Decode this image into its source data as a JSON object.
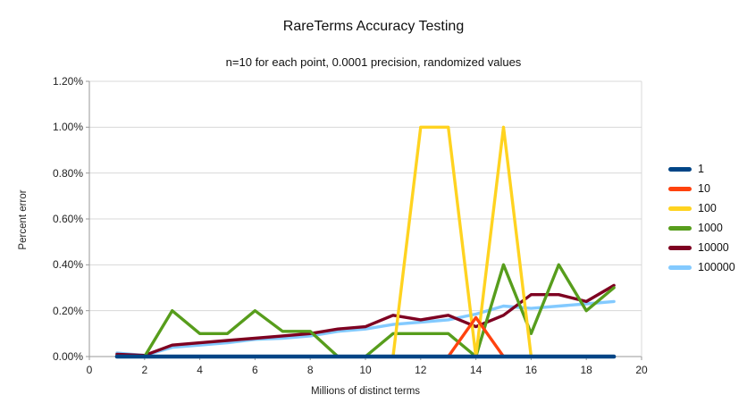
{
  "title": "RareTerms Accuracy Testing",
  "subtitle": "n=10 for each point, 0.0001 precision, randomized values",
  "chart_data": {
    "type": "line",
    "title": "RareTerms Accuracy Testing",
    "subtitle": "n=10 for each point, 0.0001 precision, randomized values",
    "xlabel": "Millions of distinct terms",
    "ylabel": "Percent error",
    "xlim": [
      0,
      20
    ],
    "ylim_percent": [
      0,
      1.2
    ],
    "grid": true,
    "legend_position": "right",
    "x": [
      1,
      2,
      3,
      4,
      5,
      6,
      7,
      8,
      9,
      10,
      11,
      12,
      13,
      14,
      15,
      16,
      17,
      18,
      19
    ],
    "series": [
      {
        "name": "1",
        "color": "#004586",
        "values": [
          0,
          0,
          0,
          0,
          0,
          0,
          0,
          0,
          0,
          0,
          0,
          0,
          0,
          0,
          0,
          0,
          0,
          0,
          0
        ]
      },
      {
        "name": "10",
        "color": "#FF420E",
        "values": [
          0,
          0,
          0,
          0,
          0,
          0,
          0,
          0,
          0,
          0,
          0,
          0,
          0,
          0.17,
          0,
          0,
          0,
          0,
          0
        ]
      },
      {
        "name": "100",
        "color": "#FFD320",
        "values": [
          0,
          0,
          0,
          0,
          0,
          0,
          0,
          0,
          0,
          0,
          0,
          1.0,
          1.0,
          0,
          1.0,
          0,
          0,
          0,
          0
        ]
      },
      {
        "name": "1000",
        "color": "#579D1C",
        "values": [
          0,
          0,
          0.2,
          0.1,
          0.1,
          0.2,
          0.11,
          0.11,
          0,
          0,
          0.1,
          0.1,
          0.1,
          0,
          0.4,
          0.1,
          0.4,
          0.2,
          0.3
        ]
      },
      {
        "name": "10000",
        "color": "#7E0021",
        "values": [
          0.01,
          0.005,
          0.05,
          0.06,
          0.07,
          0.08,
          0.09,
          0.1,
          0.12,
          0.13,
          0.18,
          0.16,
          0.18,
          0.13,
          0.18,
          0.27,
          0.27,
          0.24,
          0.31
        ]
      },
      {
        "name": "100000",
        "color": "#83CAFF",
        "values": [
          0.015,
          0.005,
          0.04,
          0.05,
          0.06,
          0.075,
          0.08,
          0.09,
          0.11,
          0.12,
          0.14,
          0.15,
          0.16,
          0.185,
          0.22,
          0.21,
          0.22,
          0.23,
          0.24
        ]
      }
    ],
    "y_ticks": [
      {
        "value": 1.2,
        "label": "1.20%"
      },
      {
        "value": 1.0,
        "label": "1.00%"
      },
      {
        "value": 0.8,
        "label": "0.80%"
      },
      {
        "value": 0.6,
        "label": "0.60%"
      },
      {
        "value": 0.4,
        "label": "0.40%"
      },
      {
        "value": 0.2,
        "label": "0.20%"
      },
      {
        "value": 0.0,
        "label": "0.00%"
      }
    ],
    "x_ticks": [
      {
        "value": 0,
        "label": "0"
      },
      {
        "value": 2,
        "label": "2"
      },
      {
        "value": 4,
        "label": "4"
      },
      {
        "value": 6,
        "label": "6"
      },
      {
        "value": 8,
        "label": "8"
      },
      {
        "value": 10,
        "label": "10"
      },
      {
        "value": 12,
        "label": "12"
      },
      {
        "value": 14,
        "label": "14"
      },
      {
        "value": 16,
        "label": "16"
      },
      {
        "value": 18,
        "label": "18"
      },
      {
        "value": 20,
        "label": "20"
      }
    ],
    "legend_labels": [
      "1",
      "10",
      "100",
      "1000",
      "10000",
      "100000"
    ]
  },
  "colors": {
    "gridline": "#d8d8d8",
    "axis": "#9a9a9a",
    "border": "#d8d8d8",
    "background": "#ffffff"
  }
}
